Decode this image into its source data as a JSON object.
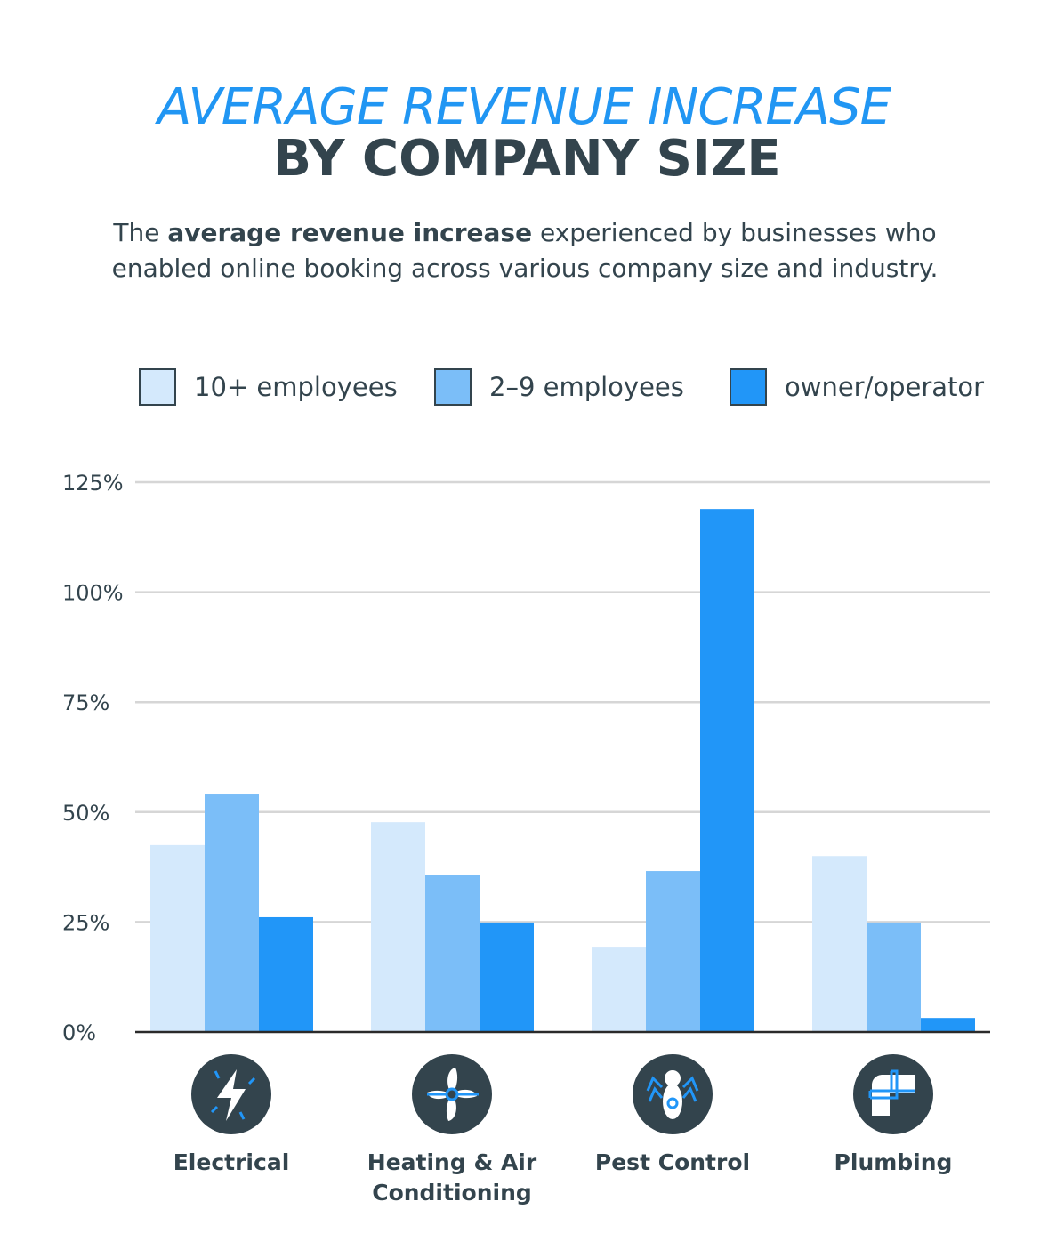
{
  "title_line1": "AVERAGE REVENUE INCREASE",
  "title_line2": "BY COMPANY SIZE",
  "subtitle": {
    "pre": "The ",
    "bold": "average revenue increase",
    "post": " experienced by businesses who enabled online booking across various company size and industry."
  },
  "colors": {
    "dark": "#33444d",
    "light": "#d4e9fc",
    "mid": "#7bbef8",
    "strong": "#2196f8"
  },
  "chart_data": {
    "type": "bar",
    "categories": [
      "Electrical",
      "Heating & Air Conditioning",
      "Pest Control",
      "Plumbing"
    ],
    "category_icons": [
      "lightning-bolt-icon",
      "fan-icon",
      "bug-icon",
      "pipe-icon"
    ],
    "series": [
      {
        "name": "10+ employees",
        "color": "#d4e9fc",
        "values": [
          42.5,
          47.7,
          19.4,
          40
        ]
      },
      {
        "name": "2–9 employees",
        "color": "#7bbef8",
        "values": [
          54,
          35.6,
          36.6,
          24.9
        ]
      },
      {
        "name": "owner/operator",
        "color": "#2196f8",
        "values": [
          26.1,
          24.9,
          118.9,
          3.2
        ]
      }
    ],
    "yticks": [
      "0%",
      "25%",
      "50%",
      "75%",
      "100%",
      "125%"
    ],
    "ylim": [
      0,
      125
    ],
    "grid": true,
    "legend": "top"
  }
}
